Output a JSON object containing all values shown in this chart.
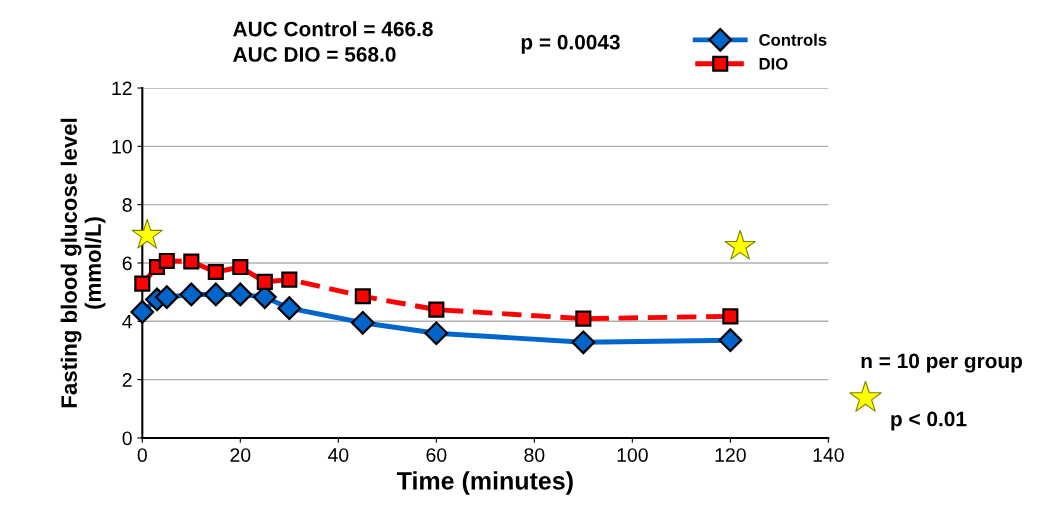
{
  "chart_data": {
    "type": "line",
    "xlabel": "Time (minutes)",
    "ylabel": "Fasting blood glucose level\n(mmol/L)",
    "x": [
      0,
      3,
      5,
      10,
      15,
      20,
      25,
      30,
      45,
      60,
      90,
      120
    ],
    "series": [
      {
        "name": "Controls",
        "color": "#0066cc",
        "marker": "diamond",
        "line_style": "solid",
        "values": [
          4.32,
          4.75,
          4.83,
          4.92,
          4.92,
          4.92,
          4.83,
          4.45,
          3.95,
          3.59,
          3.28,
          3.35
        ]
      },
      {
        "name": "DIO",
        "color": "#ff0000",
        "marker": "square",
        "line_style": "dashed",
        "values": [
          5.29,
          5.86,
          6.07,
          6.05,
          5.69,
          5.86,
          5.35,
          5.43,
          4.86,
          4.4,
          4.09,
          4.17
        ]
      },
      {
        "type": "scatter",
        "color": "#ffff00",
        "marker": "star",
        "x": [
          1,
          122
        ],
        "values": [
          6.95,
          6.57
        ]
      }
    ],
    "xlim": [
      0,
      140
    ],
    "xticks": [
      0,
      20,
      40,
      60,
      80,
      100,
      120,
      140
    ],
    "ylim": [
      0,
      12
    ],
    "yticks": [
      0,
      2,
      4,
      6,
      8,
      10,
      12
    ],
    "grid": "y",
    "legend": "top right",
    "annotations": [
      "AUC Control = 466.8\nAUC DIO = 568.0",
      "p = 0.0043",
      "n = 10 per group",
      "p < 0.01"
    ]
  }
}
